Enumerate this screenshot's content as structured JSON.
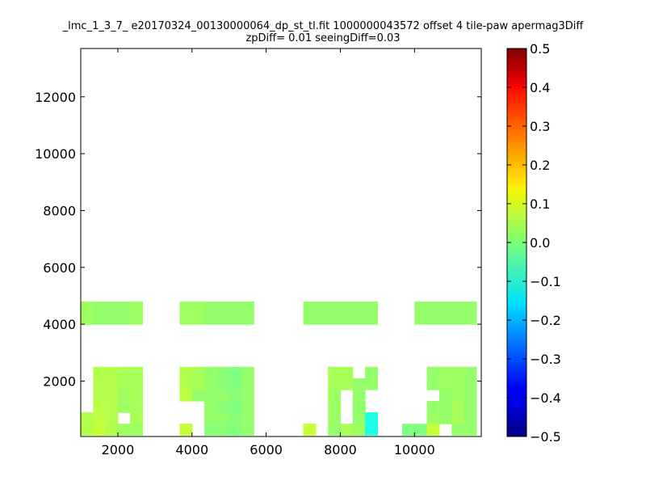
{
  "chart_data": {
    "type": "heatmap",
    "title": "_lmc_1_3_7_ e20170324_00130000064_dp_st_tl.fit 1000000043572 offset 4 tile-paw apermag3Diff",
    "subtitle": "zpDiff= 0.01 seeingDiff=0.03",
    "xlim": [
      1000,
      11800
    ],
    "ylim": [
      50,
      13700
    ],
    "x_ticks": [
      2000,
      4000,
      6000,
      8000,
      10000
    ],
    "y_ticks": [
      2000,
      4000,
      6000,
      8000,
      10000,
      12000
    ],
    "colorbar": {
      "colormap": "jet",
      "range": [
        -0.5,
        0.5
      ],
      "ticks": [
        "0.5",
        "0.4",
        "0.3",
        "0.2",
        "0.1",
        "0.0",
        "−0.1",
        "−0.2",
        "−0.3",
        "−0.4",
        "−0.5"
      ]
    },
    "grid": false,
    "cell_size": [
      333,
      400
    ],
    "columns_x": [
      1000,
      1333,
      1667,
      2000,
      2333,
      2667,
      3667,
      4000,
      4333,
      4667,
      5000,
      5333,
      5667,
      7000,
      7333,
      7667,
      8000,
      8333,
      8667,
      9667,
      10000,
      10333,
      10667,
      11000,
      11333
    ],
    "rows_y": [
      100,
      500,
      900,
      1300,
      1700,
      2100,
      4000,
      4400,
      4800,
      5200,
      5600,
      6000,
      7900,
      8300,
      8700,
      9100,
      9500,
      9900,
      11900,
      12300,
      12700,
      13100,
      13500
    ],
    "cells": [
      [
        0,
        0,
        0.05
      ],
      [
        1,
        0,
        0.07
      ],
      [
        2,
        0,
        0.05
      ],
      [
        3,
        0,
        0.03
      ],
      [
        4,
        0,
        0.03
      ],
      [
        6,
        0,
        0.07
      ],
      [
        8,
        0,
        0.01
      ],
      [
        9,
        0,
        0.01
      ],
      [
        10,
        0,
        0.0
      ],
      [
        11,
        0,
        0.02
      ],
      [
        13,
        0,
        0.07
      ],
      [
        15,
        0,
        0.02
      ],
      [
        16,
        0,
        0.04
      ],
      [
        17,
        0,
        0.03
      ],
      [
        18,
        0,
        -0.1
      ],
      [
        19,
        0,
        0.0
      ],
      [
        20,
        0,
        0.0
      ],
      [
        21,
        0,
        0.07
      ],
      [
        23,
        0,
        0.02
      ],
      [
        24,
        0,
        0.02
      ],
      [
        0,
        1,
        0.05
      ],
      [
        1,
        1,
        0.06
      ],
      [
        2,
        1,
        0.05
      ],
      [
        4,
        1,
        0.04
      ],
      [
        8,
        1,
        0.02
      ],
      [
        9,
        1,
        0.02
      ],
      [
        10,
        1,
        0.01
      ],
      [
        11,
        1,
        0.02
      ],
      [
        15,
        1,
        0.03
      ],
      [
        17,
        1,
        0.02
      ],
      [
        18,
        1,
        -0.1
      ],
      [
        21,
        1,
        0.03
      ],
      [
        22,
        1,
        0.02
      ],
      [
        23,
        1,
        0.04
      ],
      [
        24,
        1,
        0.02
      ],
      [
        1,
        2,
        0.06
      ],
      [
        2,
        2,
        0.05
      ],
      [
        3,
        2,
        0.03
      ],
      [
        4,
        2,
        0.04
      ],
      [
        8,
        2,
        0.02
      ],
      [
        9,
        2,
        0.01
      ],
      [
        10,
        2,
        0.0
      ],
      [
        11,
        2,
        0.02
      ],
      [
        15,
        2,
        0.03
      ],
      [
        17,
        2,
        0.02
      ],
      [
        21,
        2,
        0.02
      ],
      [
        22,
        2,
        0.02
      ],
      [
        23,
        2,
        0.04
      ],
      [
        24,
        2,
        0.02
      ],
      [
        1,
        3,
        0.05
      ],
      [
        2,
        3,
        0.05
      ],
      [
        3,
        3,
        0.03
      ],
      [
        4,
        3,
        0.04
      ],
      [
        6,
        3,
        0.06
      ],
      [
        7,
        3,
        0.02
      ],
      [
        8,
        3,
        0.02
      ],
      [
        9,
        3,
        0.02
      ],
      [
        10,
        3,
        0.01
      ],
      [
        11,
        3,
        0.02
      ],
      [
        15,
        3,
        0.03
      ],
      [
        17,
        3,
        0.02
      ],
      [
        22,
        3,
        0.02
      ],
      [
        23,
        3,
        0.03
      ],
      [
        24,
        3,
        0.02
      ],
      [
        1,
        4,
        0.05
      ],
      [
        2,
        4,
        0.05
      ],
      [
        3,
        4,
        0.04
      ],
      [
        4,
        4,
        0.04
      ],
      [
        6,
        4,
        0.05
      ],
      [
        7,
        4,
        0.04
      ],
      [
        8,
        4,
        0.02
      ],
      [
        9,
        4,
        0.01
      ],
      [
        10,
        4,
        0.0
      ],
      [
        11,
        4,
        0.02
      ],
      [
        15,
        4,
        0.04
      ],
      [
        16,
        4,
        0.04
      ],
      [
        17,
        4,
        0.02
      ],
      [
        18,
        4,
        0.02
      ],
      [
        21,
        4,
        0.02
      ],
      [
        22,
        4,
        0.03
      ],
      [
        23,
        4,
        0.03
      ],
      [
        24,
        4,
        0.02
      ],
      [
        1,
        5,
        0.05
      ],
      [
        2,
        5,
        0.05
      ],
      [
        3,
        5,
        0.04
      ],
      [
        4,
        5,
        0.04
      ],
      [
        6,
        5,
        0.05
      ],
      [
        7,
        5,
        0.04
      ],
      [
        8,
        5,
        0.02
      ],
      [
        9,
        5,
        0.01
      ],
      [
        10,
        5,
        0.0
      ],
      [
        11,
        5,
        0.02
      ],
      [
        15,
        5,
        0.04
      ],
      [
        16,
        5,
        0.04
      ],
      [
        18,
        5,
        0.02
      ],
      [
        21,
        5,
        0.02
      ],
      [
        22,
        5,
        0.03
      ],
      [
        23,
        5,
        0.03
      ],
      [
        24,
        5,
        0.02
      ],
      [
        0,
        6,
        0.03
      ],
      [
        1,
        6,
        0.02
      ],
      [
        2,
        6,
        0.02
      ],
      [
        3,
        6,
        0.02
      ],
      [
        4,
        6,
        0.03
      ],
      [
        6,
        6,
        0.03
      ],
      [
        7,
        6,
        0.03
      ],
      [
        8,
        6,
        0.02
      ],
      [
        9,
        6,
        0.02
      ],
      [
        10,
        6,
        0.02
      ],
      [
        11,
        6,
        0.02
      ],
      [
        13,
        6,
        0.02
      ],
      [
        14,
        6,
        0.02
      ],
      [
        15,
        6,
        0.02
      ],
      [
        16,
        6,
        0.02
      ],
      [
        17,
        6,
        0.02
      ],
      [
        18,
        6,
        0.02
      ],
      [
        20,
        6,
        0.02
      ],
      [
        21,
        6,
        0.02
      ],
      [
        22,
        6,
        0.02
      ],
      [
        23,
        6,
        0.02
      ],
      [
        24,
        6,
        0.02
      ],
      [
        0,
        7,
        0.03
      ],
      [
        1,
        7,
        0.02
      ],
      [
        2,
        7,
        0.02
      ],
      [
        3,
        7,
        0.02
      ],
      [
        4,
        7,
        0.03
      ],
      [
        6,
        7,
        0.03
      ],
      [
        7,
        7,
        0.03
      ],
      [
        8,
        7,
        0.02
      ],
      [
        9,
        7,
        0.02
      ],
      [
        10,
        7,
        0.02
      ],
      [
        11,
        7,
        0.02
      ],
      [
        13,
        7,
        0.02
      ],
      [
        14,
        7,
        0.02
      ],
      [
        15,
        7,
        0.02
      ],
      [
        16,
        7,
        0.02
      ],
      [
        17,
        7,
        0.02
      ],
      [
        18,
        7,
        0.02
      ],
      [
        20,
        7,
        0.02
      ],
      [
        21,
        7,
        0.02
      ],
      [
        22,
        7,
        0.02
      ],
      [
        23,
        7,
        0.02
      ],
      [
        24,
        7,
        0.02
      ]
    ]
  }
}
